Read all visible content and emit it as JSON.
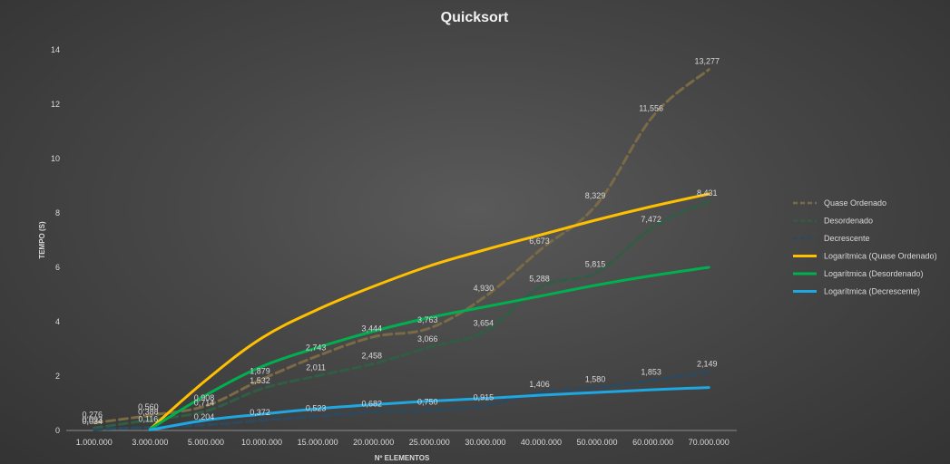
{
  "chart_data": {
    "type": "line",
    "title": "Quicksort",
    "xlabel": "Nº ELEMENTOS",
    "ylabel": "TEMPO (S)",
    "ylim": [
      0,
      14
    ],
    "yticks": [
      "0",
      "2",
      "4",
      "6",
      "8",
      "10",
      "12",
      "14"
    ],
    "categories": [
      "1.000.000",
      "3.000.000",
      "5.000.000",
      "10.000.000",
      "15.000.000",
      "20.000.000",
      "25.000.000",
      "30.000.000",
      "40.000.000",
      "50.000.000",
      "60.000.000",
      "70.000.000"
    ],
    "grid": false,
    "legend_position": "right",
    "series": [
      {
        "name": "Quase Ordenado",
        "style": "dashed",
        "color": "#7a6a45",
        "values": [
          0.276,
          0.56,
          0.908,
          1.879,
          2.743,
          3.444,
          3.763,
          4.93,
          6.673,
          8.329,
          11.556,
          13.277
        ],
        "labels": [
          "0,276",
          "0,560",
          "0,908",
          "1,879",
          "2,743",
          "3,444",
          "3,763",
          "4,930",
          "6,673",
          "8,329",
          "11,556",
          "13,277"
        ]
      },
      {
        "name": "Desordenado",
        "style": "dashed",
        "color": "#2f5e45",
        "values": [
          0.093,
          0.388,
          0.714,
          1.532,
          2.011,
          2.458,
          3.066,
          3.654,
          5.288,
          5.815,
          7.472,
          8.431
        ],
        "labels": [
          "0,093",
          "0,388",
          "0,714",
          "1,532",
          "2,011",
          "2,458",
          "3,066",
          "3,654",
          "5,288",
          "5,815",
          "7,472",
          "8,431"
        ]
      },
      {
        "name": "Decrescente",
        "style": "dashed",
        "color": "#2b4a60",
        "values": [
          0.034,
          0.116,
          0.204,
          0.372,
          0.523,
          0.682,
          0.75,
          0.915,
          1.406,
          1.58,
          1.853,
          2.149
        ],
        "labels": [
          "0,034",
          "0,116",
          "0,204",
          "0,372",
          "0,523",
          "0,682",
          "0,750",
          "0,915",
          "1,406",
          "1,580",
          "1,853",
          "2,149"
        ]
      },
      {
        "name": "Logarítmica (Quase Ordenado)",
        "style": "trendline",
        "color": "#ffc000",
        "values": [
          null,
          0.05,
          1.85,
          3.4,
          4.45,
          5.3,
          6.05,
          6.65,
          7.2,
          7.75,
          8.25,
          8.7
        ]
      },
      {
        "name": "Logarítmica (Desordenado)",
        "style": "trendline",
        "color": "#00b050",
        "values": [
          null,
          0.05,
          1.3,
          2.35,
          3.05,
          3.65,
          4.15,
          4.55,
          4.95,
          5.35,
          5.7,
          6.0
        ]
      },
      {
        "name": "Logarítmica (Decrescente)",
        "style": "trendline",
        "color": "#1ea7e1",
        "values": [
          null,
          0.02,
          0.38,
          0.6,
          0.8,
          0.95,
          1.08,
          1.18,
          1.3,
          1.4,
          1.5,
          1.58
        ]
      }
    ]
  }
}
